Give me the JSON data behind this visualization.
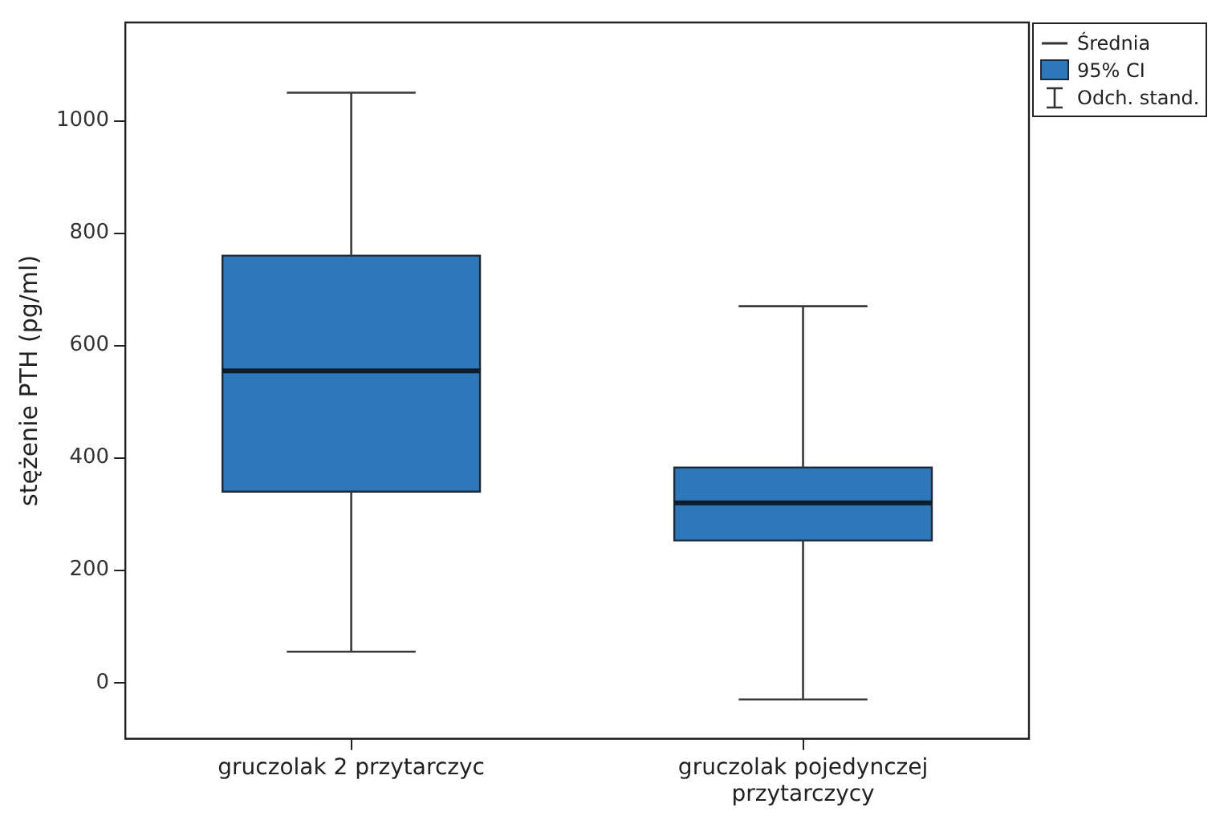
{
  "chart_data": {
    "type": "box",
    "ylabel": "stężenie PTH (pg/ml)",
    "categories": [
      "gruczolak 2 przytarczyc",
      "gruczolak pojedynczej przytarczycy"
    ],
    "series": [
      {
        "color": "#2e78b9",
        "boxes": [
          {
            "low": 55,
            "q1": 340,
            "median": 555,
            "q3": 760,
            "high": 1050
          },
          {
            "low": -30,
            "q1": 253,
            "median": 320,
            "q3": 383,
            "high": 670
          }
        ]
      }
    ],
    "ylim": [
      -100,
      1175
    ],
    "yticks": [
      0,
      200,
      400,
      600,
      800,
      1000
    ],
    "grid": false,
    "annotations": [
      "Średnia",
      "95% CI",
      "Odch. stand."
    ]
  }
}
